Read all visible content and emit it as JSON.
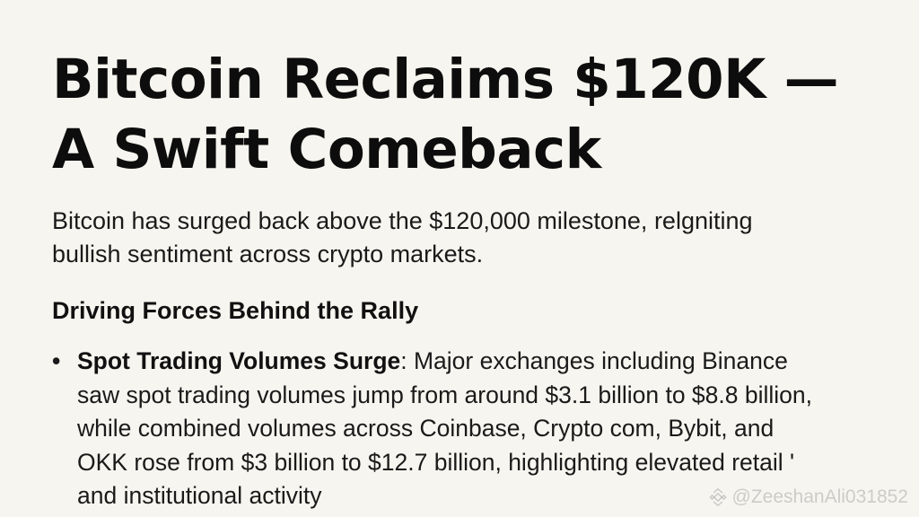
{
  "article": {
    "headline_line1": "Bitcoin Reclaims $120K —",
    "headline_line2": "A Swift Comeback",
    "lede_line1": "Bitcoin has surged back above the $120,000 milestone, relgniting",
    "lede_line2": "bullish sentiment across crypto markets.",
    "section_heading": "Driving Forces Behind the Rally",
    "bullets": [
      {
        "marker": "•",
        "title": "Spot Trading Volumes Surge",
        "first_line_rest": ": Major exchanges including Binance",
        "line2": "saw spot trading volumes jump from around $3.1 billion to $8.8 billion,",
        "line3": "while combined volumes across Coinbase, Crypto com, Bybit, and",
        "line4": "OKK rose from $3 billion to $12.7 billion, highlighting elevated retail '",
        "line5": "and institutional activity"
      }
    ]
  },
  "watermark": {
    "text": "@ZeeshanAli031852",
    "logo_icon": "binance-logo-icon"
  }
}
